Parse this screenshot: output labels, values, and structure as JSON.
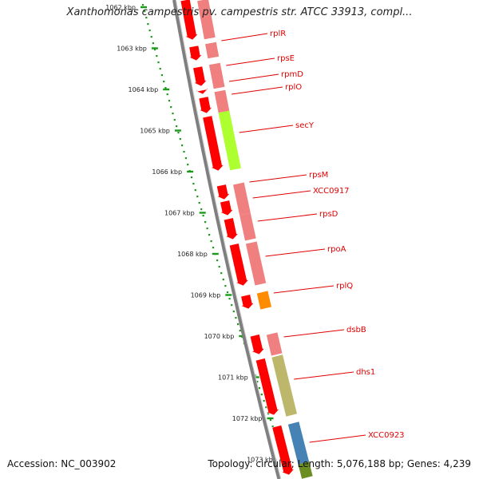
{
  "title": "Xanthomonas campestris pv. campestris str. ATCC 33913, compl...",
  "footer": {
    "accession": "Accession: NC_003902",
    "summary": "Topology: circular; Length: 5,076,188 bp; Genes: 4,239"
  },
  "colors": {
    "backbone": "#7f7f7f",
    "scale": "#1a9a1a",
    "gene_label": "#e00000",
    "forward_arrow": "#ff0000",
    "cds_pink": "#f08080",
    "cds_green": "#adff2f",
    "cds_orange": "#ff8c00",
    "cds_khaki": "#bdb76b",
    "cds_blue": "#4682b4",
    "cds_olive": "#6b8e23"
  },
  "ruler": {
    "unit": "kbp",
    "ticks": [
      "1062 kbp",
      "1063 kbp",
      "1064 kbp",
      "1065 kbp",
      "1066 kbp",
      "1067 kbp",
      "1068 kbp",
      "1069 kbp",
      "1070 kbp",
      "1071 kbp",
      "1072 kbp",
      "1073 kbp"
    ]
  },
  "genes": [
    {
      "name": "rplR",
      "color": "#f08080"
    },
    {
      "name": "rpsE",
      "color": "#f08080"
    },
    {
      "name": "rpmD",
      "color": "#f08080"
    },
    {
      "name": "rplO",
      "color": "#f08080"
    },
    {
      "name": "secY",
      "color": "#adff2f"
    },
    {
      "name": "rpsM",
      "color": "#f08080"
    },
    {
      "name": "XCC0917",
      "color": "#f08080"
    },
    {
      "name": "rpsD",
      "color": "#f08080"
    },
    {
      "name": "rpoA",
      "color": "#ff8c00"
    },
    {
      "name": "rplQ",
      "color": "#f08080"
    },
    {
      "name": "dsbB",
      "color": "#bdb76b"
    },
    {
      "name": "dhs1",
      "color": "#4682b4"
    },
    {
      "name": "XCC0923",
      "color": "#6b8e23"
    }
  ]
}
